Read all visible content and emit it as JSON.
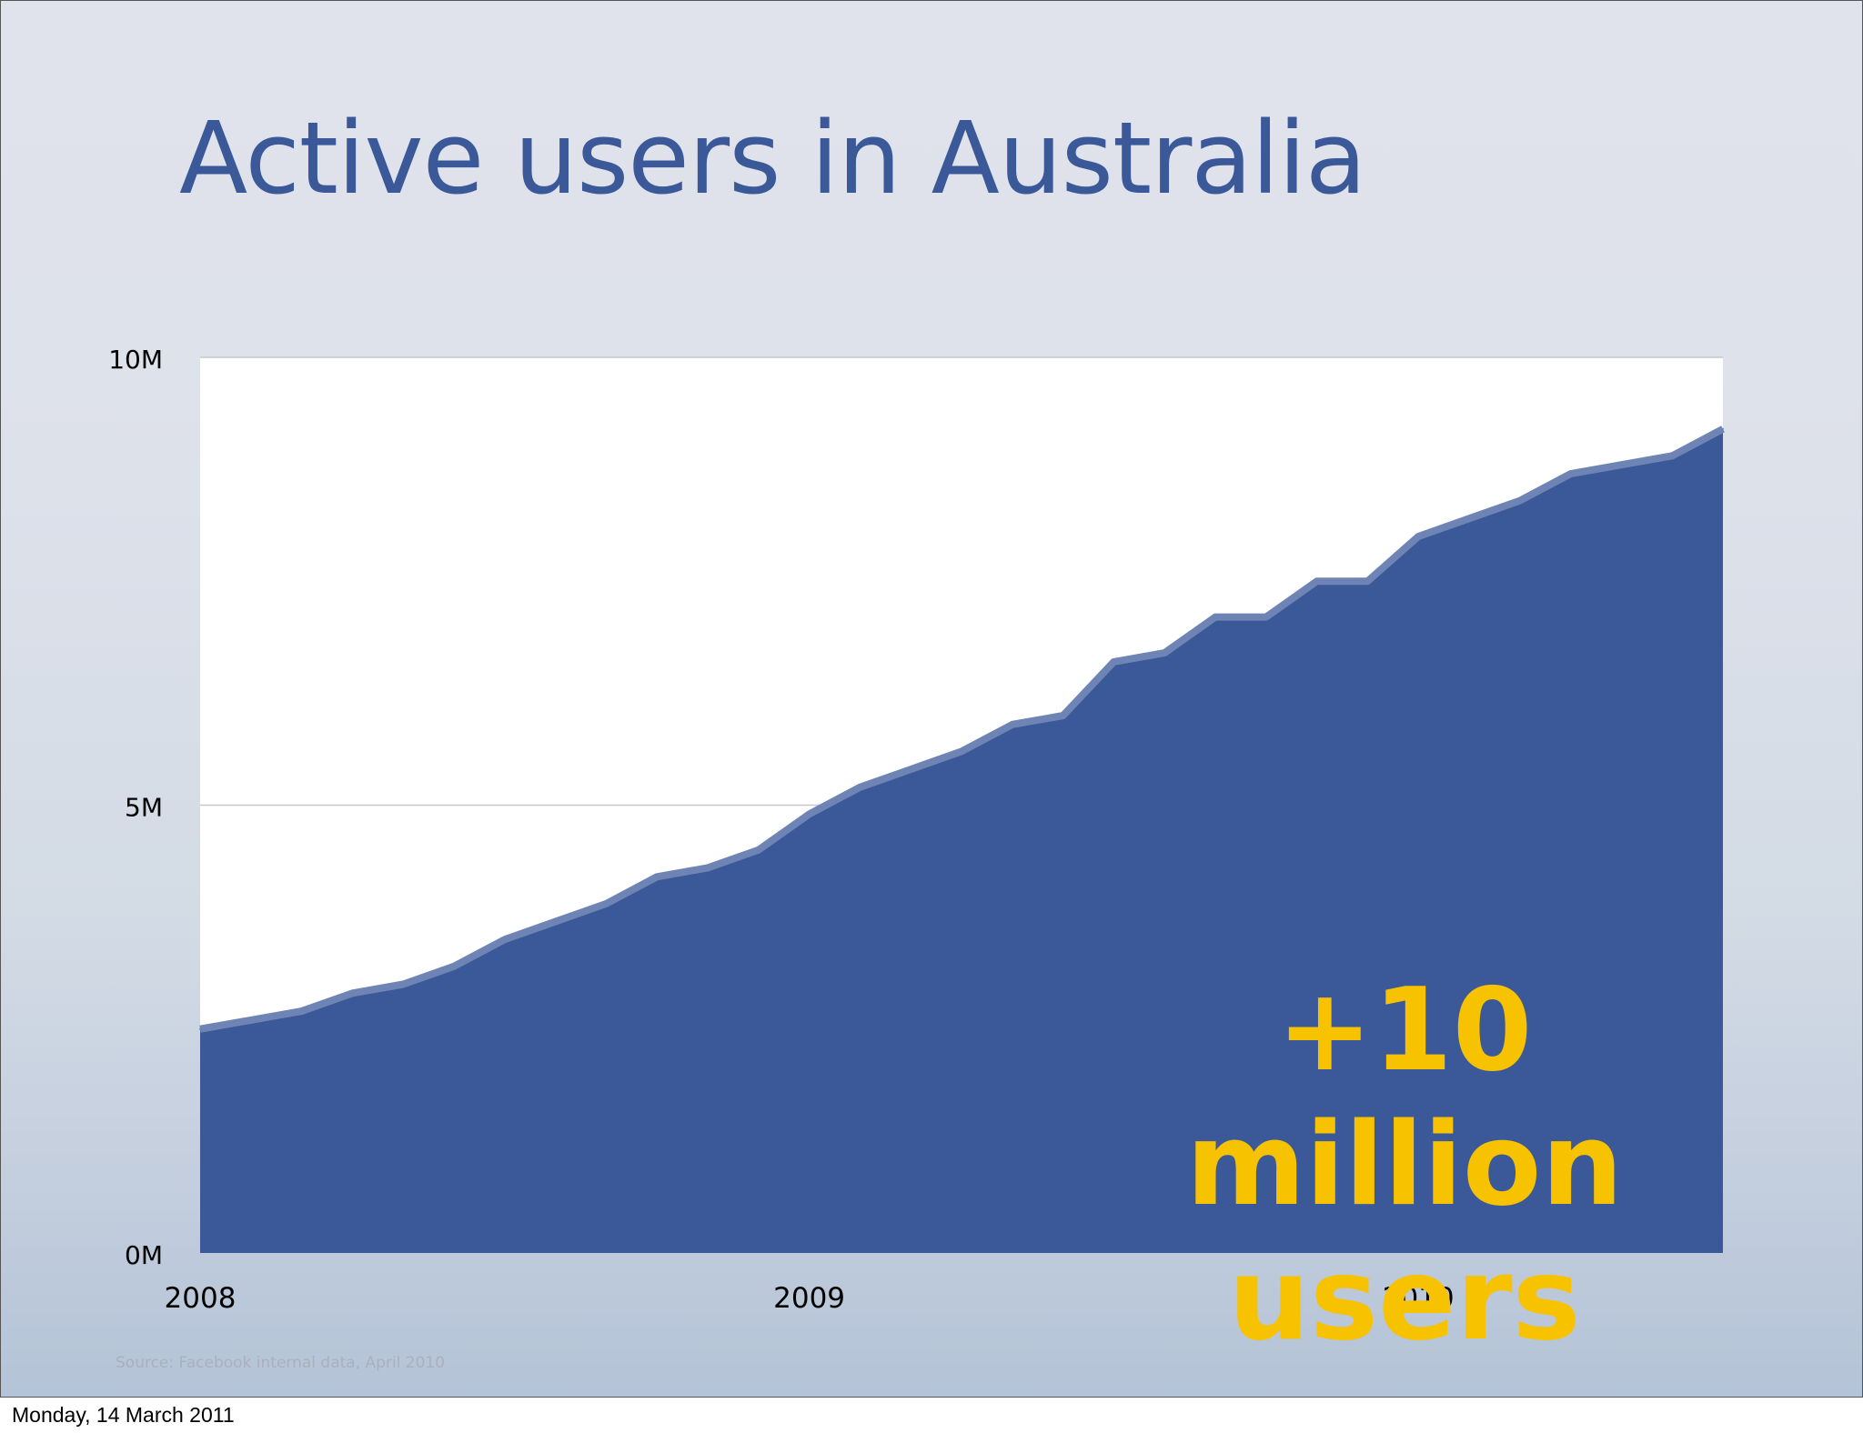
{
  "slide": {
    "title": "Active users in Australia",
    "callout_lines": [
      "+10",
      "million",
      "users"
    ],
    "source": "Source: Facebook internal data,  April  2010",
    "footer_date": "Monday, 14 March 2011"
  },
  "colors": {
    "title": "#3b5998",
    "area_fill": "#3b5998",
    "area_stroke": "#6d84b4",
    "callout": "#f7c200",
    "plot_background": "#ffffff",
    "gridline": "#c8c8c8"
  },
  "chart_data": {
    "type": "area",
    "title": "",
    "xlabel": "",
    "ylabel": "",
    "x_ticks": [
      {
        "value": 2008,
        "label": "2008"
      },
      {
        "value": 2009,
        "label": "2009"
      },
      {
        "value": 2010,
        "label": "2010"
      }
    ],
    "y_ticks": [
      {
        "value": 0,
        "label": "0M"
      },
      {
        "value": 5000000,
        "label": "5M"
      },
      {
        "value": 10000000,
        "label": "10M"
      }
    ],
    "xlim": [
      2008,
      2010.5
    ],
    "ylim": [
      0,
      10000000
    ],
    "grid": true,
    "series": [
      {
        "x": [
          2008.0,
          2008.0833,
          2008.1667,
          2008.25,
          2008.3333,
          2008.4167,
          2008.5,
          2008.5833,
          2008.6667,
          2008.75,
          2008.8333,
          2008.9167,
          2009.0,
          2009.0833,
          2009.1667,
          2009.25,
          2009.3333,
          2009.4167,
          2009.5,
          2009.5833,
          2009.6667,
          2009.75,
          2009.8333,
          2009.9167,
          2010.0,
          2010.0833,
          2010.1667,
          2010.25,
          2010.3333,
          2010.4167,
          2010.5
        ],
        "values": [
          2500000,
          2600000,
          2700000,
          2900000,
          3000000,
          3200000,
          3500000,
          3700000,
          3900000,
          4200000,
          4300000,
          4500000,
          4900000,
          5200000,
          5400000,
          5600000,
          5900000,
          6000000,
          6600000,
          6700000,
          7100000,
          7100000,
          7500000,
          7500000,
          8000000,
          8200000,
          8400000,
          8700000,
          8800000,
          8900000,
          9200000
        ]
      }
    ]
  }
}
